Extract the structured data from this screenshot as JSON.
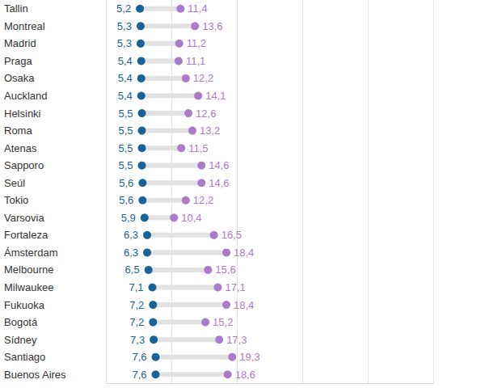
{
  "chart_data": {
    "type": "dumbbell",
    "orientation": "horizontal",
    "categories": [
      "Tallin",
      "Montreal",
      "Madrid",
      "Praga",
      "Osaka",
      "Auckland",
      "Helsinki",
      "Roma",
      "Atenas",
      "Sapporo",
      "Seúl",
      "Tokio",
      "Varsovia",
      "Fortaleza",
      "Ámsterdam",
      "Melbourne",
      "Milwaukee",
      "Fukuoka",
      "Bogotá",
      "Sídney",
      "Santiago",
      "Buenos Aires"
    ],
    "series": [
      {
        "color": "#1a6399",
        "values": [
          5.2,
          5.3,
          5.3,
          5.4,
          5.4,
          5.4,
          5.5,
          5.5,
          5.5,
          5.5,
          5.6,
          5.6,
          5.9,
          6.3,
          6.3,
          6.5,
          7.1,
          7.2,
          7.2,
          7.3,
          7.6,
          7.6
        ],
        "value_labels": [
          "5,2",
          "5,3",
          "5,3",
          "5,4",
          "5,4",
          "5,4",
          "5,5",
          "5,5",
          "5,5",
          "5,5",
          "5,6",
          "5,6",
          "5,9",
          "6,3",
          "6,3",
          "6,5",
          "7,1",
          "7,2",
          "7,2",
          "7,3",
          "7,6",
          "7,6"
        ]
      },
      {
        "color": "#a97bc9",
        "values": [
          11.4,
          13.6,
          11.2,
          11.1,
          12.2,
          14.1,
          12.6,
          13.2,
          11.5,
          14.6,
          14.6,
          12.2,
          10.4,
          16.5,
          18.4,
          15.6,
          17.1,
          18.4,
          15.2,
          17.3,
          19.3,
          18.6
        ],
        "value_labels": [
          "11,4",
          "13,6",
          "11,2",
          "11,1",
          "12,2",
          "14,1",
          "12,6",
          "13,2",
          "11,5",
          "14,6",
          "14,6",
          "12,2",
          "10,4",
          "16,5",
          "18,4",
          "15,6",
          "17,1",
          "18,4",
          "15,2",
          "17,3",
          "19,3",
          "18,6"
        ]
      }
    ],
    "xlim": [
      0,
      50
    ],
    "xticks": [
      0,
      10,
      20,
      30,
      40,
      50
    ],
    "grid": true,
    "data_labels": true,
    "tick_labels": false
  }
}
